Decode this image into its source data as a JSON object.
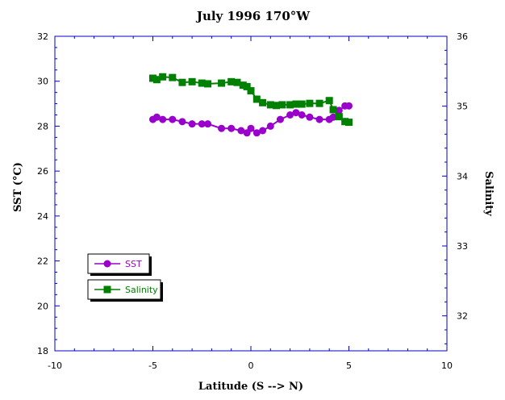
{
  "chart_data": {
    "type": "line",
    "title": "July 1996 170°W",
    "xlabel": "Latitude (S --> N)",
    "ylabel_left": "SST (°C)",
    "ylabel_right": "Salinity",
    "xlim": [
      -10,
      10
    ],
    "ylim_left": [
      18,
      32
    ],
    "ylim_right": [
      31.5,
      36
    ],
    "x_ticks": [
      "-10",
      "-5",
      "0",
      "5",
      "10"
    ],
    "y_left_ticks": [
      "18",
      "20",
      "22",
      "24",
      "26",
      "28",
      "30",
      "32"
    ],
    "y_right_ticks": [
      "32",
      "33",
      "34",
      "35",
      "36"
    ],
    "grid": false,
    "legend_placement": "lower-left",
    "series": [
      {
        "name": "SST",
        "axis": "left",
        "color": "#9900cc",
        "marker": "circle",
        "x": [
          -5.0,
          -4.8,
          -4.5,
          -4.0,
          -3.5,
          -3.0,
          -2.5,
          -2.2,
          -1.5,
          -1.0,
          -0.5,
          -0.2,
          0.0,
          0.3,
          0.6,
          1.0,
          1.5,
          2.0,
          2.3,
          2.6,
          3.0,
          3.5,
          4.0,
          4.2,
          4.5,
          4.8,
          5.0
        ],
        "values": [
          28.3,
          28.4,
          28.3,
          28.3,
          28.2,
          28.1,
          28.1,
          28.1,
          27.9,
          27.9,
          27.8,
          27.7,
          27.9,
          27.7,
          27.8,
          28.0,
          28.3,
          28.5,
          28.6,
          28.5,
          28.4,
          28.3,
          28.3,
          28.4,
          28.7,
          28.9,
          28.9
        ]
      },
      {
        "name": "Salinity",
        "axis": "right",
        "color": "#008000",
        "marker": "square",
        "x": [
          -5.0,
          -4.8,
          -4.5,
          -4.0,
          -3.5,
          -3.0,
          -2.5,
          -2.2,
          -1.5,
          -1.0,
          -0.7,
          -0.4,
          -0.2,
          0.0,
          0.3,
          0.6,
          1.0,
          1.3,
          1.6,
          2.0,
          2.3,
          2.6,
          3.0,
          3.5,
          4.0,
          4.2,
          4.5,
          4.8,
          5.0
        ],
        "values": [
          35.4,
          35.38,
          35.42,
          35.41,
          35.34,
          35.35,
          35.33,
          35.32,
          35.33,
          35.35,
          35.34,
          35.3,
          35.28,
          35.22,
          35.1,
          35.05,
          35.02,
          35.01,
          35.02,
          35.02,
          35.03,
          35.03,
          35.04,
          35.04,
          35.08,
          34.95,
          34.85,
          34.78,
          34.77
        ]
      }
    ]
  }
}
